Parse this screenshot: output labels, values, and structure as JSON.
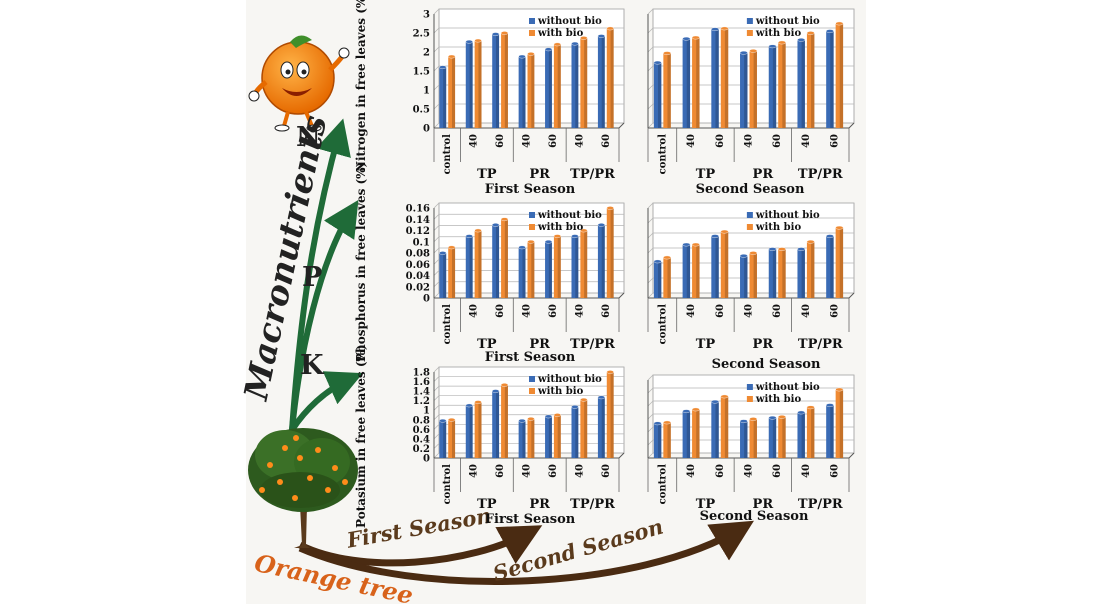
{
  "figure": {
    "macronutrients_label": "Macronutrients",
    "letters": {
      "n": "N",
      "p": "P",
      "k": "K"
    },
    "orange_tree_label": "Orange tree",
    "first_season_arrow": "First Season",
    "second_season_arrow": "Second Season",
    "colors": {
      "without_bio": "#3a6bb5",
      "with_bio": "#ef8a33",
      "arrow_green": "#1f6b38",
      "arrow_brown": "#4a2b12",
      "tree_label": "#d8621a"
    }
  },
  "chart_data": [
    {
      "id": "n-first",
      "type": "bar",
      "categories": [
        "control",
        "40",
        "60",
        "40",
        "60",
        "40",
        "60"
      ],
      "groups": [
        "TP",
        "PR",
        "TP/PR"
      ],
      "series": [
        {
          "name": "without bio",
          "values": [
            1.6,
            2.27,
            2.47,
            1.88,
            2.07,
            2.22,
            2.42
          ]
        },
        {
          "name": "with bio",
          "values": [
            1.88,
            2.3,
            2.5,
            1.95,
            2.2,
            2.37,
            2.62
          ]
        }
      ],
      "ylabel": "Nitrogen in free leaves (%)",
      "xlabel": "First Season",
      "ylim": [
        0,
        3
      ],
      "yticks": [
        "0",
        "0.5",
        "1",
        "1.5",
        "2",
        "2.5",
        "3"
      ]
    },
    {
      "id": "n-second",
      "type": "bar",
      "categories": [
        "control",
        "40",
        "60",
        "40",
        "60",
        "40",
        "60"
      ],
      "groups": [
        "TP",
        "PR",
        "TP/PR"
      ],
      "series": [
        {
          "name": "without bio",
          "values": [
            1.72,
            2.35,
            2.6,
            1.98,
            2.15,
            2.32,
            2.55
          ]
        },
        {
          "name": "with bio",
          "values": [
            1.97,
            2.38,
            2.62,
            2.03,
            2.25,
            2.5,
            2.75
          ]
        }
      ],
      "ylabel": "",
      "xlabel": "Second Season",
      "ylim": [
        0,
        3
      ],
      "yticks": []
    },
    {
      "id": "p-first",
      "type": "bar",
      "categories": [
        "control",
        "40",
        "60",
        "40",
        "60",
        "40",
        "60"
      ],
      "groups": [
        "TP",
        "PR",
        "TP/PR"
      ],
      "series": [
        {
          "name": "without bio",
          "values": [
            0.08,
            0.11,
            0.13,
            0.09,
            0.1,
            0.11,
            0.13
          ]
        },
        {
          "name": "with bio",
          "values": [
            0.09,
            0.12,
            0.14,
            0.1,
            0.11,
            0.12,
            0.16
          ]
        }
      ],
      "ylabel": "Phosphorus in free leaves (%)",
      "xlabel": "First Season",
      "ylim": [
        0,
        0.16
      ],
      "yticks": [
        "0",
        "0.02",
        "0.04",
        "0.06",
        "0.08",
        "0.1",
        "0.12",
        "0.14",
        "0.16"
      ]
    },
    {
      "id": "p-second",
      "type": "bar",
      "categories": [
        "control",
        "40",
        "60",
        "40",
        "60",
        "40",
        "60"
      ],
      "groups": [
        "TP",
        "PR",
        "TP/PR"
      ],
      "series": [
        {
          "name": "without bio",
          "values": [
            0.065,
            0.095,
            0.11,
            0.075,
            0.087,
            0.087,
            0.11
          ]
        },
        {
          "name": "with bio",
          "values": [
            0.072,
            0.095,
            0.118,
            0.08,
            0.087,
            0.1,
            0.125
          ]
        }
      ],
      "ylabel": "",
      "xlabel": "Second Season",
      "ylim": [
        0,
        0.16
      ],
      "yticks": []
    },
    {
      "id": "k-first",
      "type": "bar",
      "categories": [
        "control",
        "40",
        "60",
        "40",
        "60",
        "40",
        "60"
      ],
      "groups": [
        "TP",
        "PR",
        "TP/PR"
      ],
      "series": [
        {
          "name": "without bio",
          "values": [
            0.78,
            1.1,
            1.4,
            0.78,
            0.87,
            1.07,
            1.27
          ]
        },
        {
          "name": "with bio",
          "values": [
            0.8,
            1.17,
            1.53,
            0.82,
            0.9,
            1.22,
            1.8
          ]
        }
      ],
      "ylabel": "Potasium in free leaves (%)",
      "xlabel": "First Season",
      "ylim": [
        0,
        1.8
      ],
      "yticks": [
        "0",
        "0.2",
        "0.4",
        "0.6",
        "0.8",
        "1",
        "1.2",
        "1.4",
        "1.6",
        "1.8"
      ]
    },
    {
      "id": "k-second",
      "type": "bar",
      "categories": [
        "control",
        "40",
        "60",
        "40",
        "60",
        "40",
        "60"
      ],
      "groups": [
        "TP",
        "PR",
        "TP/PR"
      ],
      "series": [
        {
          "name": "without bio",
          "values": [
            0.8,
            1.08,
            1.3,
            0.85,
            0.93,
            1.05,
            1.22
          ]
        },
        {
          "name": "with bio",
          "values": [
            0.82,
            1.12,
            1.42,
            0.9,
            0.95,
            1.17,
            1.58
          ]
        }
      ],
      "ylabel": "",
      "xlabel": "Second Season",
      "ylim": [
        0,
        1.8
      ],
      "yticks": []
    }
  ]
}
